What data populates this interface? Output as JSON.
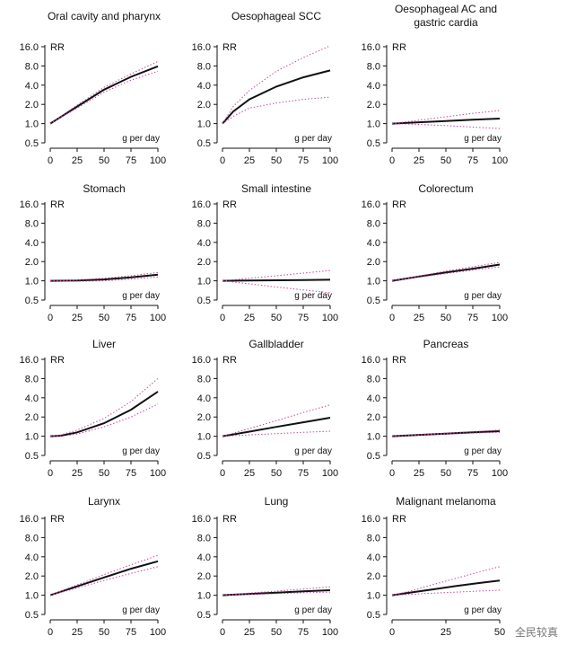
{
  "watermark": "全民较真",
  "chart_data": [
    {
      "type": "line",
      "title": [
        "Oral cavity and pharynx"
      ],
      "ylabel": "RR",
      "xlabel": "g per day",
      "y_scale": "log2",
      "yticks": [
        0.5,
        1.0,
        2.0,
        4.0,
        8.0,
        16.0
      ],
      "xticks": [
        0,
        25,
        50,
        75,
        100
      ],
      "x": [
        0,
        25,
        50,
        75,
        100
      ],
      "series": [
        {
          "values": [
            1.0,
            1.85,
            3.4,
            5.4,
            7.9
          ]
        },
        {
          "values": [
            1.0,
            1.75,
            3.1,
            4.8,
            6.6
          ]
        },
        {
          "values": [
            1.0,
            1.95,
            3.7,
            6.0,
            9.4
          ]
        }
      ]
    },
    {
      "type": "line",
      "title": [
        "Oesophageal SCC"
      ],
      "ylabel": "RR",
      "xlabel": "g per day",
      "y_scale": "log2",
      "yticks": [
        0.5,
        1.0,
        2.0,
        4.0,
        8.0,
        16.0
      ],
      "xticks": [
        0,
        25,
        50,
        75,
        100
      ],
      "x": [
        0,
        10,
        25,
        50,
        75,
        100
      ],
      "series": [
        {
          "values": [
            1.0,
            1.55,
            2.4,
            3.8,
            5.3,
            6.8
          ]
        },
        {
          "values": [
            1.0,
            1.3,
            1.75,
            2.1,
            2.4,
            2.6
          ]
        },
        {
          "values": [
            1.0,
            1.85,
            3.3,
            6.6,
            10.8,
            16.5
          ]
        }
      ]
    },
    {
      "type": "line",
      "title": [
        "Oesophageal AC and",
        "gastric cardia"
      ],
      "ylabel": "RR",
      "xlabel": "g per day",
      "y_scale": "log2",
      "yticks": [
        0.5,
        1.0,
        2.0,
        4.0,
        8.0,
        16.0
      ],
      "xticks": [
        0,
        25,
        50,
        75,
        100
      ],
      "x": [
        0,
        25,
        50,
        75,
        100
      ],
      "series": [
        {
          "values": [
            1.0,
            1.05,
            1.1,
            1.15,
            1.2
          ]
        },
        {
          "values": [
            1.0,
            0.97,
            0.93,
            0.88,
            0.84
          ]
        },
        {
          "values": [
            1.0,
            1.13,
            1.28,
            1.45,
            1.6
          ]
        }
      ]
    },
    {
      "type": "line",
      "title": [
        "Stomach"
      ],
      "ylabel": "RR",
      "xlabel": "g per day",
      "y_scale": "log2",
      "yticks": [
        0.5,
        1.0,
        2.0,
        4.0,
        8.0,
        16.0
      ],
      "xticks": [
        0,
        25,
        50,
        75,
        100
      ],
      "x": [
        0,
        25,
        50,
        75,
        100
      ],
      "series": [
        {
          "values": [
            1.0,
            1.01,
            1.05,
            1.13,
            1.25
          ]
        },
        {
          "values": [
            1.0,
            0.98,
            1.0,
            1.06,
            1.15
          ]
        },
        {
          "values": [
            1.0,
            1.03,
            1.1,
            1.2,
            1.35
          ]
        }
      ]
    },
    {
      "type": "line",
      "title": [
        "Small intestine"
      ],
      "ylabel": "RR",
      "xlabel": "g per day",
      "y_scale": "log2",
      "yticks": [
        0.5,
        1.0,
        2.0,
        4.0,
        8.0,
        16.0
      ],
      "xticks": [
        0,
        25,
        50,
        75,
        100
      ],
      "x": [
        0,
        25,
        50,
        75,
        100
      ],
      "series": [
        {
          "values": [
            1.0,
            1.01,
            1.02,
            1.03,
            1.04
          ]
        },
        {
          "values": [
            1.0,
            0.9,
            0.8,
            0.72,
            0.65
          ]
        },
        {
          "values": [
            1.0,
            1.1,
            1.2,
            1.32,
            1.45
          ]
        }
      ]
    },
    {
      "type": "line",
      "title": [
        "Colorectum"
      ],
      "ylabel": "RR",
      "xlabel": "g per day",
      "y_scale": "log2",
      "yticks": [
        0.5,
        1.0,
        2.0,
        4.0,
        8.0,
        16.0
      ],
      "xticks": [
        0,
        25,
        50,
        75,
        100
      ],
      "x": [
        0,
        25,
        50,
        75,
        100
      ],
      "series": [
        {
          "values": [
            1.0,
            1.17,
            1.35,
            1.55,
            1.8
          ]
        },
        {
          "values": [
            1.0,
            1.14,
            1.3,
            1.47,
            1.65
          ]
        },
        {
          "values": [
            1.0,
            1.19,
            1.42,
            1.66,
            1.95
          ]
        }
      ]
    },
    {
      "type": "line",
      "title": [
        "Liver"
      ],
      "ylabel": "RR",
      "xlabel": "g per day",
      "y_scale": "log2",
      "yticks": [
        0.5,
        1.0,
        2.0,
        4.0,
        8.0,
        16.0
      ],
      "xticks": [
        0,
        25,
        50,
        75,
        100
      ],
      "x": [
        0,
        10,
        25,
        50,
        75,
        100
      ],
      "series": [
        {
          "values": [
            1.0,
            1.02,
            1.15,
            1.6,
            2.6,
            5.0
          ]
        },
        {
          "values": [
            1.0,
            1.0,
            1.08,
            1.4,
            2.0,
            3.2
          ]
        },
        {
          "values": [
            1.0,
            1.05,
            1.25,
            1.9,
            3.5,
            8.0
          ]
        }
      ]
    },
    {
      "type": "line",
      "title": [
        "Gallbladder"
      ],
      "ylabel": "RR",
      "xlabel": "g per day",
      "y_scale": "log2",
      "yticks": [
        0.5,
        1.0,
        2.0,
        4.0,
        8.0,
        16.0
      ],
      "xticks": [
        0,
        25,
        50,
        75,
        100
      ],
      "x": [
        0,
        25,
        50,
        75,
        100
      ],
      "series": [
        {
          "values": [
            1.0,
            1.18,
            1.4,
            1.65,
            1.95
          ]
        },
        {
          "values": [
            1.0,
            1.05,
            1.1,
            1.15,
            1.2
          ]
        },
        {
          "values": [
            1.0,
            1.32,
            1.75,
            2.35,
            3.1
          ]
        }
      ]
    },
    {
      "type": "line",
      "title": [
        "Pancreas"
      ],
      "ylabel": "RR",
      "xlabel": "g per day",
      "y_scale": "log2",
      "yticks": [
        0.5,
        1.0,
        2.0,
        4.0,
        8.0,
        16.0
      ],
      "xticks": [
        0,
        25,
        50,
        75,
        100
      ],
      "x": [
        0,
        25,
        50,
        75,
        100
      ],
      "series": [
        {
          "values": [
            1.0,
            1.05,
            1.1,
            1.15,
            1.2
          ]
        },
        {
          "values": [
            1.0,
            1.04,
            1.08,
            1.12,
            1.15
          ]
        },
        {
          "values": [
            1.0,
            1.06,
            1.12,
            1.18,
            1.25
          ]
        }
      ]
    },
    {
      "type": "line",
      "title": [
        "Larynx"
      ],
      "ylabel": "RR",
      "xlabel": "g per day",
      "y_scale": "log2",
      "yticks": [
        0.5,
        1.0,
        2.0,
        4.0,
        8.0,
        16.0
      ],
      "xticks": [
        0,
        25,
        50,
        75,
        100
      ],
      "x": [
        0,
        25,
        50,
        75,
        100
      ],
      "series": [
        {
          "values": [
            1.0,
            1.38,
            1.9,
            2.6,
            3.4
          ]
        },
        {
          "values": [
            1.0,
            1.3,
            1.7,
            2.2,
            2.8
          ]
        },
        {
          "values": [
            1.0,
            1.45,
            2.1,
            3.0,
            4.2
          ]
        }
      ]
    },
    {
      "type": "line",
      "title": [
        "Lung"
      ],
      "ylabel": "RR",
      "xlabel": "g per day",
      "y_scale": "log2",
      "yticks": [
        0.5,
        1.0,
        2.0,
        4.0,
        8.0,
        16.0
      ],
      "xticks": [
        0,
        25,
        50,
        75,
        100
      ],
      "x": [
        0,
        25,
        50,
        75,
        100
      ],
      "series": [
        {
          "values": [
            1.0,
            1.05,
            1.1,
            1.15,
            1.2
          ]
        },
        {
          "values": [
            1.0,
            1.03,
            1.06,
            1.09,
            1.12
          ]
        },
        {
          "values": [
            1.0,
            1.08,
            1.16,
            1.25,
            1.35
          ]
        }
      ]
    },
    {
      "type": "line",
      "title": [
        "Malignant melanoma"
      ],
      "ylabel": "RR",
      "xlabel": "g per day",
      "y_scale": "log2",
      "yticks": [
        0.5,
        1.0,
        2.0,
        4.0,
        8.0,
        16.0
      ],
      "xticks": [
        0,
        25,
        50
      ],
      "x": [
        0,
        10,
        20,
        30,
        40,
        50
      ],
      "series": [
        {
          "values": [
            1.0,
            1.12,
            1.25,
            1.4,
            1.55,
            1.7
          ]
        },
        {
          "values": [
            1.0,
            1.04,
            1.08,
            1.12,
            1.16,
            1.2
          ]
        },
        {
          "values": [
            1.0,
            1.2,
            1.5,
            1.85,
            2.3,
            2.8
          ]
        }
      ]
    }
  ]
}
